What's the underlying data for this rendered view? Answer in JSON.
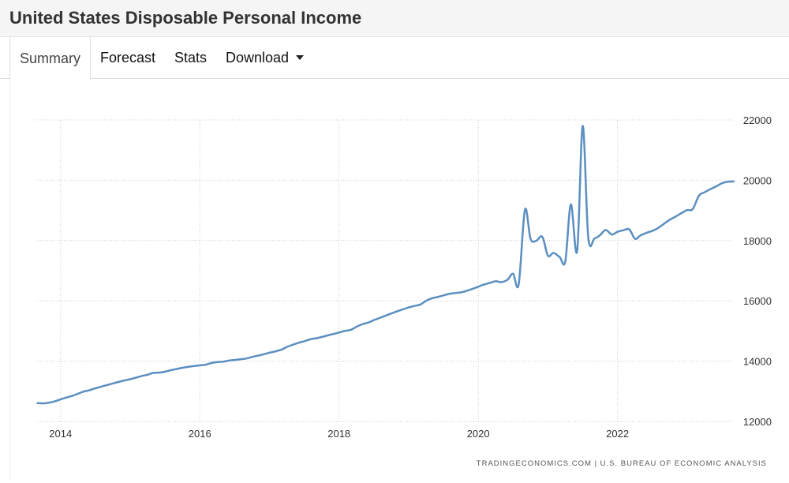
{
  "header": {
    "title": "United States Disposable Personal Income"
  },
  "tabs": [
    {
      "label": "Summary"
    },
    {
      "label": "Forecast"
    },
    {
      "label": "Stats"
    },
    {
      "label": "Download"
    }
  ],
  "source": "TRADINGECONOMICS.COM | U.S. BUREAU OF ECONOMIC ANALYSIS",
  "colors": {
    "line": "#5b8fc0",
    "grid": "#cccccc",
    "text": "#333333"
  },
  "chart_data": {
    "type": "line",
    "title": "",
    "xlabel": "",
    "ylabel": "",
    "xlim": [
      2013.64,
      2023.67
    ],
    "ylim": [
      12000,
      22000
    ],
    "x_ticks": [
      2014,
      2016,
      2018,
      2020,
      2022
    ],
    "x_tick_labels": [
      "2014",
      "2016",
      "2018",
      "2020",
      "2022"
    ],
    "y_ticks": [
      12000,
      14000,
      16000,
      18000,
      20000,
      22000
    ],
    "y_tick_labels": [
      "12000",
      "14000",
      "16000",
      "18000",
      "20000",
      "22000"
    ],
    "grid": true,
    "y_axis_position": "right",
    "series": [
      {
        "values": [
          [
            2013.67,
            12610
          ],
          [
            2013.75,
            12600
          ],
          [
            2013.83,
            12620
          ],
          [
            2013.92,
            12670
          ],
          [
            2014.0,
            12730
          ],
          [
            2014.08,
            12790
          ],
          [
            2014.17,
            12850
          ],
          [
            2014.25,
            12920
          ],
          [
            2014.33,
            12990
          ],
          [
            2014.42,
            13040
          ],
          [
            2014.5,
            13100
          ],
          [
            2014.58,
            13150
          ],
          [
            2014.67,
            13210
          ],
          [
            2014.75,
            13260
          ],
          [
            2014.83,
            13310
          ],
          [
            2014.92,
            13360
          ],
          [
            2015.0,
            13400
          ],
          [
            2015.08,
            13450
          ],
          [
            2015.17,
            13510
          ],
          [
            2015.25,
            13550
          ],
          [
            2015.33,
            13610
          ],
          [
            2015.42,
            13620
          ],
          [
            2015.5,
            13650
          ],
          [
            2015.58,
            13700
          ],
          [
            2015.67,
            13740
          ],
          [
            2015.75,
            13780
          ],
          [
            2015.83,
            13810
          ],
          [
            2015.92,
            13840
          ],
          [
            2016.0,
            13860
          ],
          [
            2016.08,
            13880
          ],
          [
            2016.17,
            13940
          ],
          [
            2016.25,
            13970
          ],
          [
            2016.33,
            13980
          ],
          [
            2016.42,
            14020
          ],
          [
            2016.5,
            14040
          ],
          [
            2016.58,
            14060
          ],
          [
            2016.67,
            14090
          ],
          [
            2016.75,
            14140
          ],
          [
            2016.83,
            14180
          ],
          [
            2016.92,
            14230
          ],
          [
            2017.0,
            14280
          ],
          [
            2017.08,
            14320
          ],
          [
            2017.17,
            14380
          ],
          [
            2017.25,
            14470
          ],
          [
            2017.33,
            14540
          ],
          [
            2017.42,
            14610
          ],
          [
            2017.5,
            14660
          ],
          [
            2017.58,
            14720
          ],
          [
            2017.67,
            14760
          ],
          [
            2017.75,
            14800
          ],
          [
            2017.83,
            14850
          ],
          [
            2017.92,
            14900
          ],
          [
            2018.0,
            14950
          ],
          [
            2018.08,
            15000
          ],
          [
            2018.17,
            15040
          ],
          [
            2018.25,
            15140
          ],
          [
            2018.33,
            15220
          ],
          [
            2018.42,
            15280
          ],
          [
            2018.5,
            15360
          ],
          [
            2018.58,
            15430
          ],
          [
            2018.67,
            15510
          ],
          [
            2018.75,
            15580
          ],
          [
            2018.83,
            15650
          ],
          [
            2018.92,
            15720
          ],
          [
            2019.0,
            15780
          ],
          [
            2019.08,
            15830
          ],
          [
            2019.17,
            15880
          ],
          [
            2019.25,
            16000
          ],
          [
            2019.33,
            16080
          ],
          [
            2019.42,
            16130
          ],
          [
            2019.5,
            16180
          ],
          [
            2019.58,
            16230
          ],
          [
            2019.67,
            16260
          ],
          [
            2019.75,
            16280
          ],
          [
            2019.83,
            16330
          ],
          [
            2019.92,
            16400
          ],
          [
            2020.0,
            16470
          ],
          [
            2020.08,
            16540
          ],
          [
            2020.17,
            16600
          ],
          [
            2020.25,
            16650
          ],
          [
            2020.33,
            16620
          ],
          [
            2020.42,
            16700
          ],
          [
            2020.5,
            16900
          ],
          [
            2020.58,
            16550
          ],
          [
            2020.67,
            19020
          ],
          [
            2020.75,
            18060
          ],
          [
            2020.83,
            17990
          ],
          [
            2020.92,
            18120
          ],
          [
            2021.0,
            17500
          ],
          [
            2021.08,
            17590
          ],
          [
            2021.17,
            17450
          ],
          [
            2021.25,
            17310
          ],
          [
            2021.33,
            19200
          ],
          [
            2021.42,
            17650
          ],
          [
            2021.5,
            21800
          ],
          [
            2021.58,
            18100
          ],
          [
            2021.67,
            18070
          ],
          [
            2021.75,
            18180
          ],
          [
            2021.83,
            18350
          ],
          [
            2021.92,
            18200
          ],
          [
            2022.0,
            18290
          ],
          [
            2022.08,
            18340
          ],
          [
            2022.17,
            18370
          ],
          [
            2022.25,
            18060
          ],
          [
            2022.33,
            18170
          ],
          [
            2022.42,
            18260
          ],
          [
            2022.5,
            18320
          ],
          [
            2022.58,
            18410
          ],
          [
            2022.67,
            18560
          ],
          [
            2022.75,
            18690
          ],
          [
            2022.83,
            18790
          ],
          [
            2022.92,
            18910
          ],
          [
            2023.0,
            19010
          ],
          [
            2023.08,
            19040
          ],
          [
            2023.17,
            19490
          ],
          [
            2023.25,
            19600
          ],
          [
            2023.33,
            19700
          ],
          [
            2023.42,
            19800
          ],
          [
            2023.5,
            19900
          ],
          [
            2023.58,
            19950
          ],
          [
            2023.67,
            19960
          ]
        ]
      }
    ]
  }
}
